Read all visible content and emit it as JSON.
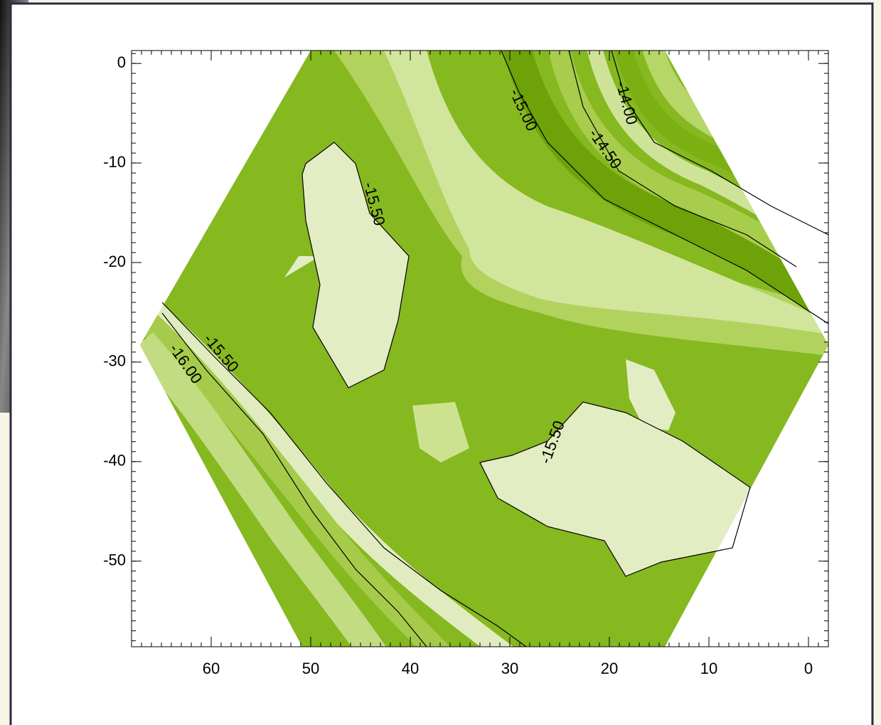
{
  "chart_data": {
    "type": "contour",
    "xlim": [
      68,
      -2
    ],
    "ylim": [
      -58.6,
      1.3
    ],
    "xticks": [
      60,
      50,
      40,
      30,
      20,
      10,
      0
    ],
    "yticks": [
      0,
      -10,
      -20,
      -30,
      -40,
      -50
    ],
    "contour_labels": {
      "values": [
        -14,
        -14.5,
        -15,
        -15.5,
        -15.5,
        -16,
        -15.5
      ],
      "value_labels": [
        "-14.00",
        "-14.50",
        "-15.00",
        "-15.50",
        "-15.50",
        "-16.00",
        "-15.50"
      ]
    }
  }
}
